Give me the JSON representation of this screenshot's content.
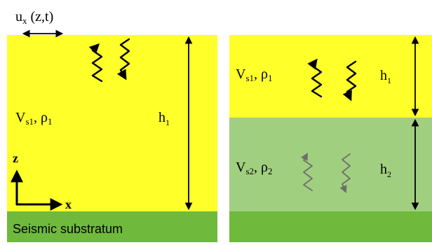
{
  "colors": {
    "soft_layer": "#FFFF2A",
    "second_layer": "#A1CF80",
    "substratum": "#6FB93C",
    "wave_dark": "#000000",
    "wave_light": "#6E6E6E"
  },
  "left_model": {
    "displacement": {
      "base": "u",
      "subscript": "x",
      "args": " (z,t)"
    },
    "velocity": {
      "base": "V",
      "subscript": "s1",
      "mid": ", ρ",
      "sub2": "1"
    },
    "thickness": {
      "base": "h",
      "subscript": "1"
    },
    "axis_z": "z",
    "axis_x": "x",
    "substratum_label": "Seismic substratum"
  },
  "right_model": {
    "layer1": {
      "velocity": {
        "base": "V",
        "subscript": "s1",
        "mid": ", ρ",
        "sub2": "1"
      },
      "thickness": {
        "base": "h",
        "subscript": "1"
      }
    },
    "layer2": {
      "velocity": {
        "base": "V",
        "subscript": "s2",
        "mid": ", ρ",
        "sub2": "2"
      },
      "thickness": {
        "base": "h",
        "subscript": "2"
      }
    }
  }
}
